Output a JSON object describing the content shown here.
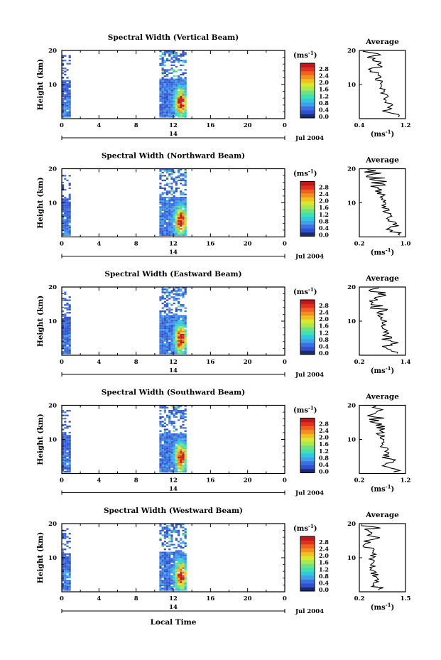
{
  "figure": {
    "xlabel": "Local Time",
    "day_label": "14",
    "date_label": "Jul 2004",
    "ylabel": "Height (km)",
    "unit_label": "(ms",
    "unit_exp": "-1",
    "avg_title": "Average",
    "avg_xlabel": "(ms",
    "avg_xlabel_exp": "-1",
    "x_ticks": [
      "0",
      "4",
      "8",
      "12",
      "16",
      "20",
      "0"
    ],
    "y_ticks": [
      "20",
      "10"
    ],
    "colorbar_labels": [
      "2.8",
      "2.4",
      "2.0",
      "1.6",
      "1.2",
      "0.8",
      "0.4",
      "0.0"
    ],
    "colormap": [
      "#1a2a6e",
      "#3050d0",
      "#3a70e0",
      "#40a0e8",
      "#30c8e0",
      "#40e0b0",
      "#70e080",
      "#a8e850",
      "#d8e830",
      "#f0c020",
      "#f09020",
      "#f06020",
      "#e03020",
      "#c01818"
    ]
  },
  "chart_data": [
    {
      "type": "heatmap",
      "title": "Spectral Width (Vertical Beam)",
      "x_unit": "hour (local time)",
      "xlim": [
        0,
        24
      ],
      "ylim": [
        0,
        20
      ],
      "colorbar_range": [
        0.0,
        3.0
      ],
      "data_blocks": [
        {
          "x": [
            0,
            0.8
          ]
        },
        {
          "x": [
            10.5,
            13.4
          ]
        }
      ],
      "avg_profile": {
        "xlim": [
          0.4,
          1.2
        ],
        "xticks": [
          "0.4",
          "1.2"
        ],
        "mean_low": 1.0,
        "mean_high": 0.6
      }
    },
    {
      "type": "heatmap",
      "title": "Spectral Width (Northward Beam)",
      "x_unit": "hour (local time)",
      "xlim": [
        0,
        24
      ],
      "ylim": [
        0,
        20
      ],
      "colorbar_range": [
        0.0,
        3.0
      ],
      "data_blocks": [
        {
          "x": [
            0,
            0.8
          ]
        },
        {
          "x": [
            10.5,
            13.4
          ]
        }
      ],
      "avg_profile": {
        "xlim": [
          0.2,
          1.0
        ],
        "xticks": [
          "0.2",
          "1.0"
        ],
        "mean_low": 0.85,
        "mean_high": 0.45
      }
    },
    {
      "type": "heatmap",
      "title": "Spectral Width (Eastward Beam)",
      "x_unit": "hour (local time)",
      "xlim": [
        0,
        24
      ],
      "ylim": [
        0,
        20
      ],
      "colorbar_range": [
        0.0,
        3.0
      ],
      "data_blocks": [
        {
          "x": [
            0,
            0.8
          ]
        },
        {
          "x": [
            10.5,
            13.4
          ]
        }
      ],
      "avg_profile": {
        "xlim": [
          0.2,
          1.4
        ],
        "xticks": [
          "0.2",
          "1.4"
        ],
        "mean_low": 1.1,
        "mean_high": 0.6
      }
    },
    {
      "type": "heatmap",
      "title": "Spectral Width (Southward Beam)",
      "x_unit": "hour (local time)",
      "xlim": [
        0,
        24
      ],
      "ylim": [
        0,
        20
      ],
      "colorbar_range": [
        0.0,
        3.0
      ],
      "data_blocks": [
        {
          "x": [
            0,
            0.8
          ]
        },
        {
          "x": [
            10.5,
            13.4
          ]
        }
      ],
      "avg_profile": {
        "xlim": [
          0.2,
          1.2
        ],
        "xticks": [
          "0.2",
          "1.2"
        ],
        "mean_low": 0.95,
        "mean_high": 0.5
      }
    },
    {
      "type": "heatmap",
      "title": "Spectral Width (Westward Beam)",
      "x_unit": "hour (local time)",
      "xlim": [
        0,
        24
      ],
      "ylim": [
        0,
        20
      ],
      "colorbar_range": [
        0.0,
        3.0
      ],
      "data_blocks": [
        {
          "x": [
            0,
            0.8
          ]
        },
        {
          "x": [
            10.5,
            13.4
          ]
        }
      ],
      "avg_profile": {
        "xlim": [
          0.2,
          1.5
        ],
        "xticks": [
          "0.2",
          "1.5"
        ],
        "mean_low": 0.7,
        "mean_high": 0.5
      }
    }
  ]
}
